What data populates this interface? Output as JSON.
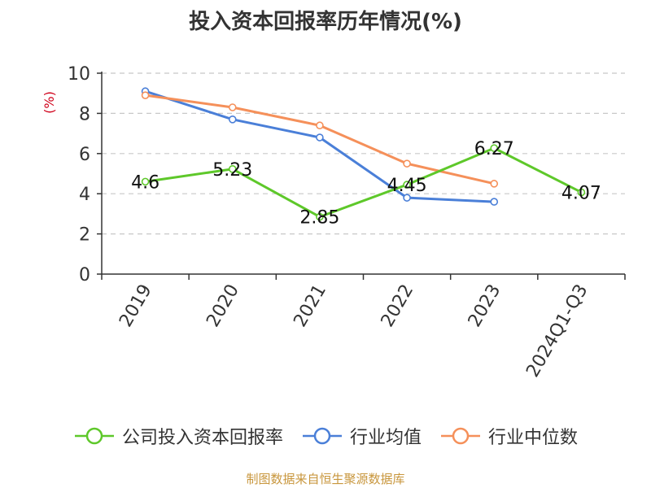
{
  "chart_data": {
    "type": "line",
    "title": "投入资本回报率历年情况(%)",
    "ylabel": "(%)",
    "xlabel": "",
    "categories": [
      "2019",
      "2020",
      "2021",
      "2022",
      "2023",
      "2024Q1-Q3"
    ],
    "ylim": [
      0,
      10
    ],
    "yticks": [
      0,
      2,
      4,
      6,
      8,
      10
    ],
    "grid": true,
    "legend_position": "bottom",
    "series": [
      {
        "name": "公司投入资本回报率",
        "color": "#5ec82a",
        "values": [
          4.6,
          5.23,
          2.85,
          4.45,
          6.27,
          4.07
        ],
        "labels": [
          "4.6",
          "5.23",
          "2.85",
          "4.45",
          "6.27",
          "4.07"
        ]
      },
      {
        "name": "行业均值",
        "color": "#4a7fd8",
        "values": [
          9.1,
          7.7,
          6.8,
          3.8,
          3.6,
          null
        ]
      },
      {
        "name": "行业中位数",
        "color": "#f5905a",
        "values": [
          8.9,
          8.3,
          7.4,
          5.5,
          4.5,
          null
        ]
      }
    ]
  },
  "source": "制图数据来自恒生聚源数据库"
}
